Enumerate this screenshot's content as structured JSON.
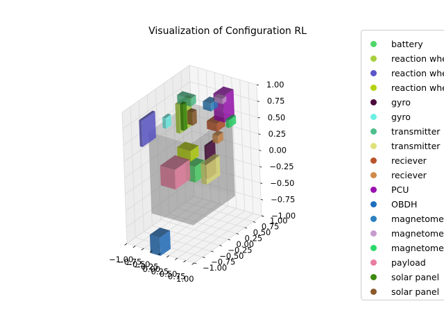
{
  "chart_data": {
    "type": "scatter",
    "title": "Visualization of Configuration RL",
    "xlim": [
      -1.0,
      1.0
    ],
    "ylim": [
      -1.0,
      1.0
    ],
    "zlim": [
      -1.0,
      1.0
    ],
    "x_ticks": [
      "−1.00",
      "−0.75",
      "−0.50",
      "−0.25",
      "0.00",
      "0.25",
      "0.50",
      "0.75",
      "1.00"
    ],
    "y_ticks": [
      "−1.00",
      "−0.75",
      "−0.50",
      "−0.25",
      "0.00",
      "0.25",
      "0.50",
      "0.75",
      "1.00"
    ],
    "z_ticks": [
      "−1.00",
      "−0.75",
      "−0.50",
      "−0.25",
      "0.00",
      "0.25",
      "0.50",
      "0.75",
      "1.00"
    ],
    "grid": true,
    "legend_position": "right",
    "series": [
      {
        "name": "battery",
        "color": "#4fd66a"
      },
      {
        "name": "reaction wheel",
        "color": "#a7cf3b"
      },
      {
        "name": "reaction wheel",
        "color": "#5a55c8"
      },
      {
        "name": "reaction wheel",
        "color": "#b5d10e"
      },
      {
        "name": "gyro",
        "color": "#4a0a3c"
      },
      {
        "name": "gyro",
        "color": "#6cf0e6"
      },
      {
        "name": "transmitter",
        "color": "#4ebf8a"
      },
      {
        "name": "transmitter",
        "color": "#e0e07a"
      },
      {
        "name": "reciever",
        "color": "#b8532a"
      },
      {
        "name": "reciever",
        "color": "#cf8a4a"
      },
      {
        "name": "PCU",
        "color": "#9a10b0"
      },
      {
        "name": "OBDH",
        "color": "#1f6fbf"
      },
      {
        "name": "magnetometer",
        "color": "#2a80c0"
      },
      {
        "name": "magnetometer",
        "color": "#c79ccf"
      },
      {
        "name": "magnetometer",
        "color": "#2ad86a"
      },
      {
        "name": "payload",
        "color": "#e87ea0"
      },
      {
        "name": "solar panel",
        "color": "#3a8a10"
      },
      {
        "name": "solar panel",
        "color": "#8a5a2a"
      }
    ]
  }
}
